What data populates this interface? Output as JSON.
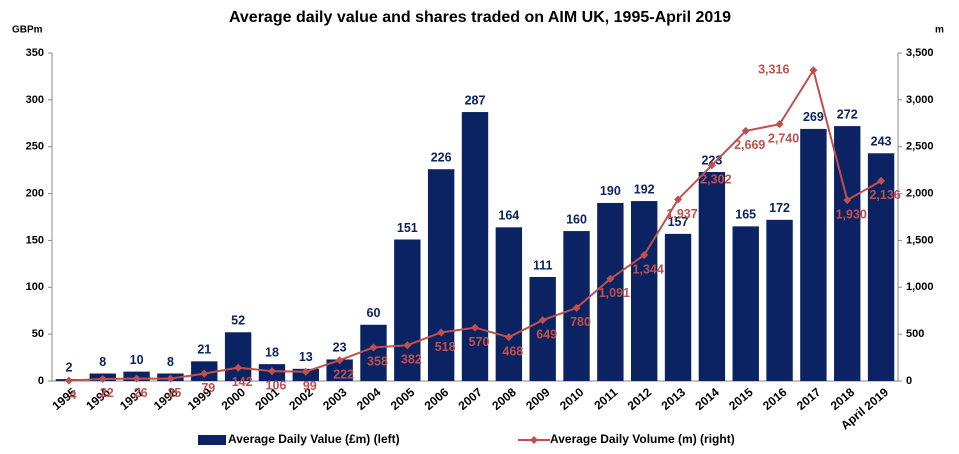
{
  "chart_data": {
    "type": "bar",
    "title": "Average daily value and shares traded on AIM UK, 1995-April 2019",
    "ylabel": "GBPm",
    "y2label": "m",
    "categories": [
      "1995",
      "1996",
      "1997",
      "1998",
      "1999",
      "2000",
      "2001",
      "2002",
      "2003",
      "2004",
      "2005",
      "2006",
      "2007",
      "2008",
      "2009",
      "2010",
      "2011",
      "2012",
      "2013",
      "2014",
      "2015",
      "2016",
      "2017",
      "2018",
      "April 2019"
    ],
    "series": [
      {
        "name": "Average Daily Value (£m) (left)",
        "type": "bar",
        "color": "#0b2362",
        "values": [
          2,
          8,
          10,
          8,
          21,
          52,
          18,
          13,
          23,
          60,
          151,
          226,
          287,
          164,
          111,
          160,
          190,
          192,
          157,
          223,
          165,
          172,
          269,
          272,
          243
        ]
      },
      {
        "name": "Average Daily Volume (m) (right)",
        "type": "line",
        "axis": "y2",
        "color": "#c0504d",
        "values": [
          4,
          22,
          26,
          25,
          79,
          142,
          106,
          99,
          222,
          358,
          382,
          518,
          570,
          468,
          649,
          780,
          1091,
          1344,
          1937,
          2302,
          2669,
          2740,
          3316,
          1930,
          2136
        ],
        "value_labels": [
          "4",
          "22",
          "26",
          "25",
          "79",
          "142",
          "106",
          "99",
          "222",
          "358",
          "382",
          "518",
          "570",
          "468",
          "649",
          "780",
          "1,091",
          "1,344",
          "1,937",
          "2,302",
          "2,669",
          "2,740",
          "3,316",
          "1,930",
          "2,136"
        ]
      }
    ],
    "ylim": [
      0,
      350
    ],
    "yticks": [
      0,
      50,
      100,
      150,
      200,
      250,
      300,
      350
    ],
    "y2lim": [
      0,
      3500
    ],
    "y2ticks": [
      0,
      500,
      {
        "value": 1000,
        "label": "1,000"
      },
      {
        "value": 1500,
        "label": "1,500"
      },
      {
        "value": 2000,
        "label": "2,000"
      },
      {
        "value": 2500,
        "label": "2,500"
      },
      {
        "value": 3000,
        "label": "3,000"
      },
      {
        "value": 3500,
        "label": "3,500"
      }
    ],
    "grid": false,
    "legend": "bottom"
  }
}
